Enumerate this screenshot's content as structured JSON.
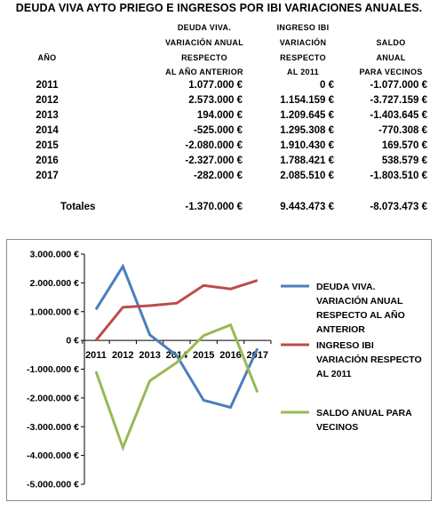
{
  "title": "DEUDA VIVA AYTO PRIEGO E INGRESOS POR IBI VARIACIONES ANUALES.",
  "table": {
    "headers": {
      "year": "AÑO",
      "deuda": [
        "DEUDA VIVA.",
        "VARIACIÓN ANUAL",
        "RESPECTO",
        "AL AÑO ANTERIOR"
      ],
      "ibi": [
        "INGRESO IBI",
        "VARIACIÓN",
        "RESPECTO",
        "AL 2011"
      ],
      "saldo": [
        "SALDO",
        "ANUAL",
        "PARA VECINOS"
      ]
    },
    "rows": [
      {
        "year": "2011",
        "deuda": "1.077.000 €",
        "ibi": "0 €",
        "saldo": "-1.077.000 €"
      },
      {
        "year": "2012",
        "deuda": "2.573.000 €",
        "ibi": "1.154.159 €",
        "saldo": "-3.727.159 €"
      },
      {
        "year": "2013",
        "deuda": "194.000 €",
        "ibi": "1.209.645 €",
        "saldo": "-1.403.645 €"
      },
      {
        "year": "2014",
        "deuda": "-525.000 €",
        "ibi": "1.295.308 €",
        "saldo": "-770.308 €"
      },
      {
        "year": "2015",
        "deuda": "-2.080.000 €",
        "ibi": "1.910.430 €",
        "saldo": "169.570 €"
      },
      {
        "year": "2016",
        "deuda": "-2.327.000 €",
        "ibi": "1.788.421 €",
        "saldo": "538.579 €"
      },
      {
        "year": "2017",
        "deuda": "-282.000 €",
        "ibi": "2.085.510 €",
        "saldo": "-1.803.510 €"
      }
    ],
    "totals": {
      "label": "Totales",
      "deuda": "-1.370.000 €",
      "ibi": "9.443.473 €",
      "saldo": "-8.073.473 €"
    }
  },
  "chart_data": {
    "type": "line",
    "categories": [
      "2011",
      "2012",
      "2013",
      "2014",
      "2015",
      "2016",
      "2017"
    ],
    "ylim": [
      -5000000,
      3000000
    ],
    "yticks": [
      3000000,
      2000000,
      1000000,
      0,
      -1000000,
      -2000000,
      -3000000,
      -4000000,
      -5000000
    ],
    "ytick_labels": [
      "3.000.000 €",
      "2.000.000 €",
      "1.000.000 €",
      "0 €",
      "-1.000.000 €",
      "-2.000.000 €",
      "-3.000.000 €",
      "-4.000.000 €",
      "-5.000.000 €"
    ],
    "grid": false,
    "legend_position": "right",
    "series": [
      {
        "name": "DEUDA VIVA. VARIACIÓN ANUAL RESPECTO AL AÑO ANTERIOR",
        "legend_lines": [
          "DEUDA VIVA.",
          "VARIACIÓN ANUAL",
          "RESPECTO AL AÑO",
          "ANTERIOR"
        ],
        "color": "#4a7ebb",
        "values": [
          1077000,
          2573000,
          194000,
          -525000,
          -2080000,
          -2327000,
          -282000
        ]
      },
      {
        "name": "INGRESO IBI VARIACIÓN RESPECTO AL 2011",
        "legend_lines": [
          "INGRESO IBI",
          "VARIACIÓN RESPECTO",
          "AL 2011"
        ],
        "color": "#be4b48",
        "values": [
          0,
          1154159,
          1209645,
          1295308,
          1910430,
          1788421,
          2085510
        ]
      },
      {
        "name": "SALDO ANUAL PARA VECINOS",
        "legend_lines": [
          "SALDO ANUAL PARA",
          "VECINOS"
        ],
        "color": "#98b954",
        "values": [
          -1077000,
          -3727159,
          -1403645,
          -770308,
          169570,
          538579,
          -1803510
        ]
      }
    ]
  }
}
